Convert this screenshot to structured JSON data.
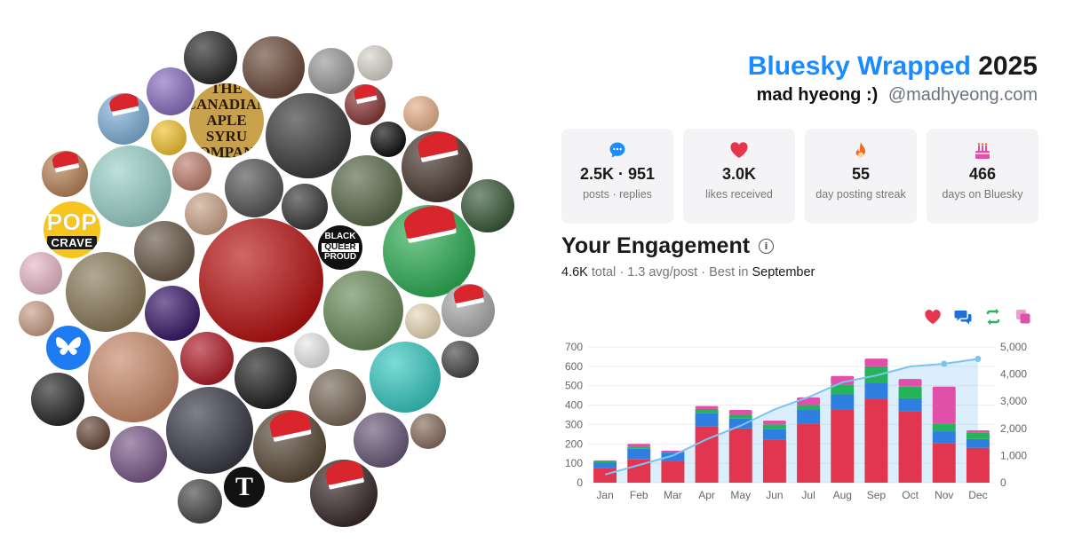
{
  "header": {
    "brand": "Bluesky Wrapped",
    "year": "2025",
    "display_name": "mad hyeong :)",
    "handle": "@madhyeong.com"
  },
  "stats": [
    {
      "icon": "speech-bubble-icon",
      "color": "#1a8cff",
      "value": "2.5K · 951",
      "label": "posts · replies"
    },
    {
      "icon": "heart-icon",
      "color": "#e8354e",
      "value": "3.0K",
      "label": "likes received"
    },
    {
      "icon": "flame-icon",
      "color": "#f26b1d",
      "value": "55",
      "label": "day posting streak"
    },
    {
      "icon": "cake-icon",
      "color": "#e04fa8",
      "value": "466",
      "label": "days on Bluesky"
    }
  ],
  "engagement": {
    "title": "Your Engagement",
    "total_value": "4.6K",
    "total_word": "total",
    "avg": "1.3 avg/post",
    "best_prefix": "Best in",
    "best_month": "September"
  },
  "legend": [
    {
      "icon": "heart-icon",
      "color": "#e8354e"
    },
    {
      "icon": "replies-icon",
      "color": "#1f6fdb"
    },
    {
      "icon": "reposts-icon",
      "color": "#27b35a"
    },
    {
      "icon": "quotes-icon",
      "color": "#e04fa8"
    }
  ],
  "collage_labels": {
    "pop": "POP",
    "crave": "CRAVE",
    "bq1": "BLACK",
    "bq2": "QUEER",
    "bq3": "PROUD",
    "canada": "THE CANADIAN APLE SYRU OMPAN",
    "nyt": "T"
  },
  "chart_data": {
    "type": "bar",
    "categories": [
      "Jan",
      "Feb",
      "Mar",
      "Apr",
      "May",
      "Jun",
      "Jul",
      "Aug",
      "Sep",
      "Oct",
      "Nov",
      "Dec"
    ],
    "stacked": true,
    "series": [
      {
        "color": "#e2354f",
        "values": [
          75,
          120,
          110,
          290,
          280,
          220,
          305,
          375,
          430,
          370,
          205,
          180
        ]
      },
      {
        "color": "#2f7fe0",
        "values": [
          30,
          55,
          45,
          70,
          50,
          55,
          70,
          80,
          85,
          65,
          60,
          45
        ]
      },
      {
        "color": "#27b35a",
        "values": [
          5,
          10,
          5,
          20,
          20,
          25,
          25,
          50,
          85,
          60,
          40,
          35
        ]
      },
      {
        "color": "#e04fa8",
        "values": [
          5,
          15,
          5,
          15,
          25,
          20,
          40,
          45,
          40,
          40,
          190,
          10
        ]
      }
    ],
    "cumulative": {
      "color": "#7cc3f0",
      "values": [
        300,
        650,
        1000,
        1600,
        2100,
        2700,
        3150,
        3700,
        3950,
        4280,
        4380,
        4560
      ]
    },
    "yticks_left": [
      0,
      100,
      200,
      300,
      400,
      500,
      600,
      700
    ],
    "ylim_left": [
      0,
      700
    ],
    "yticks_right": [
      "0",
      "1,000",
      "2,000",
      "3,000",
      "4,000",
      "5,000"
    ],
    "ylim_right": [
      0,
      5000
    ],
    "grid": true
  }
}
